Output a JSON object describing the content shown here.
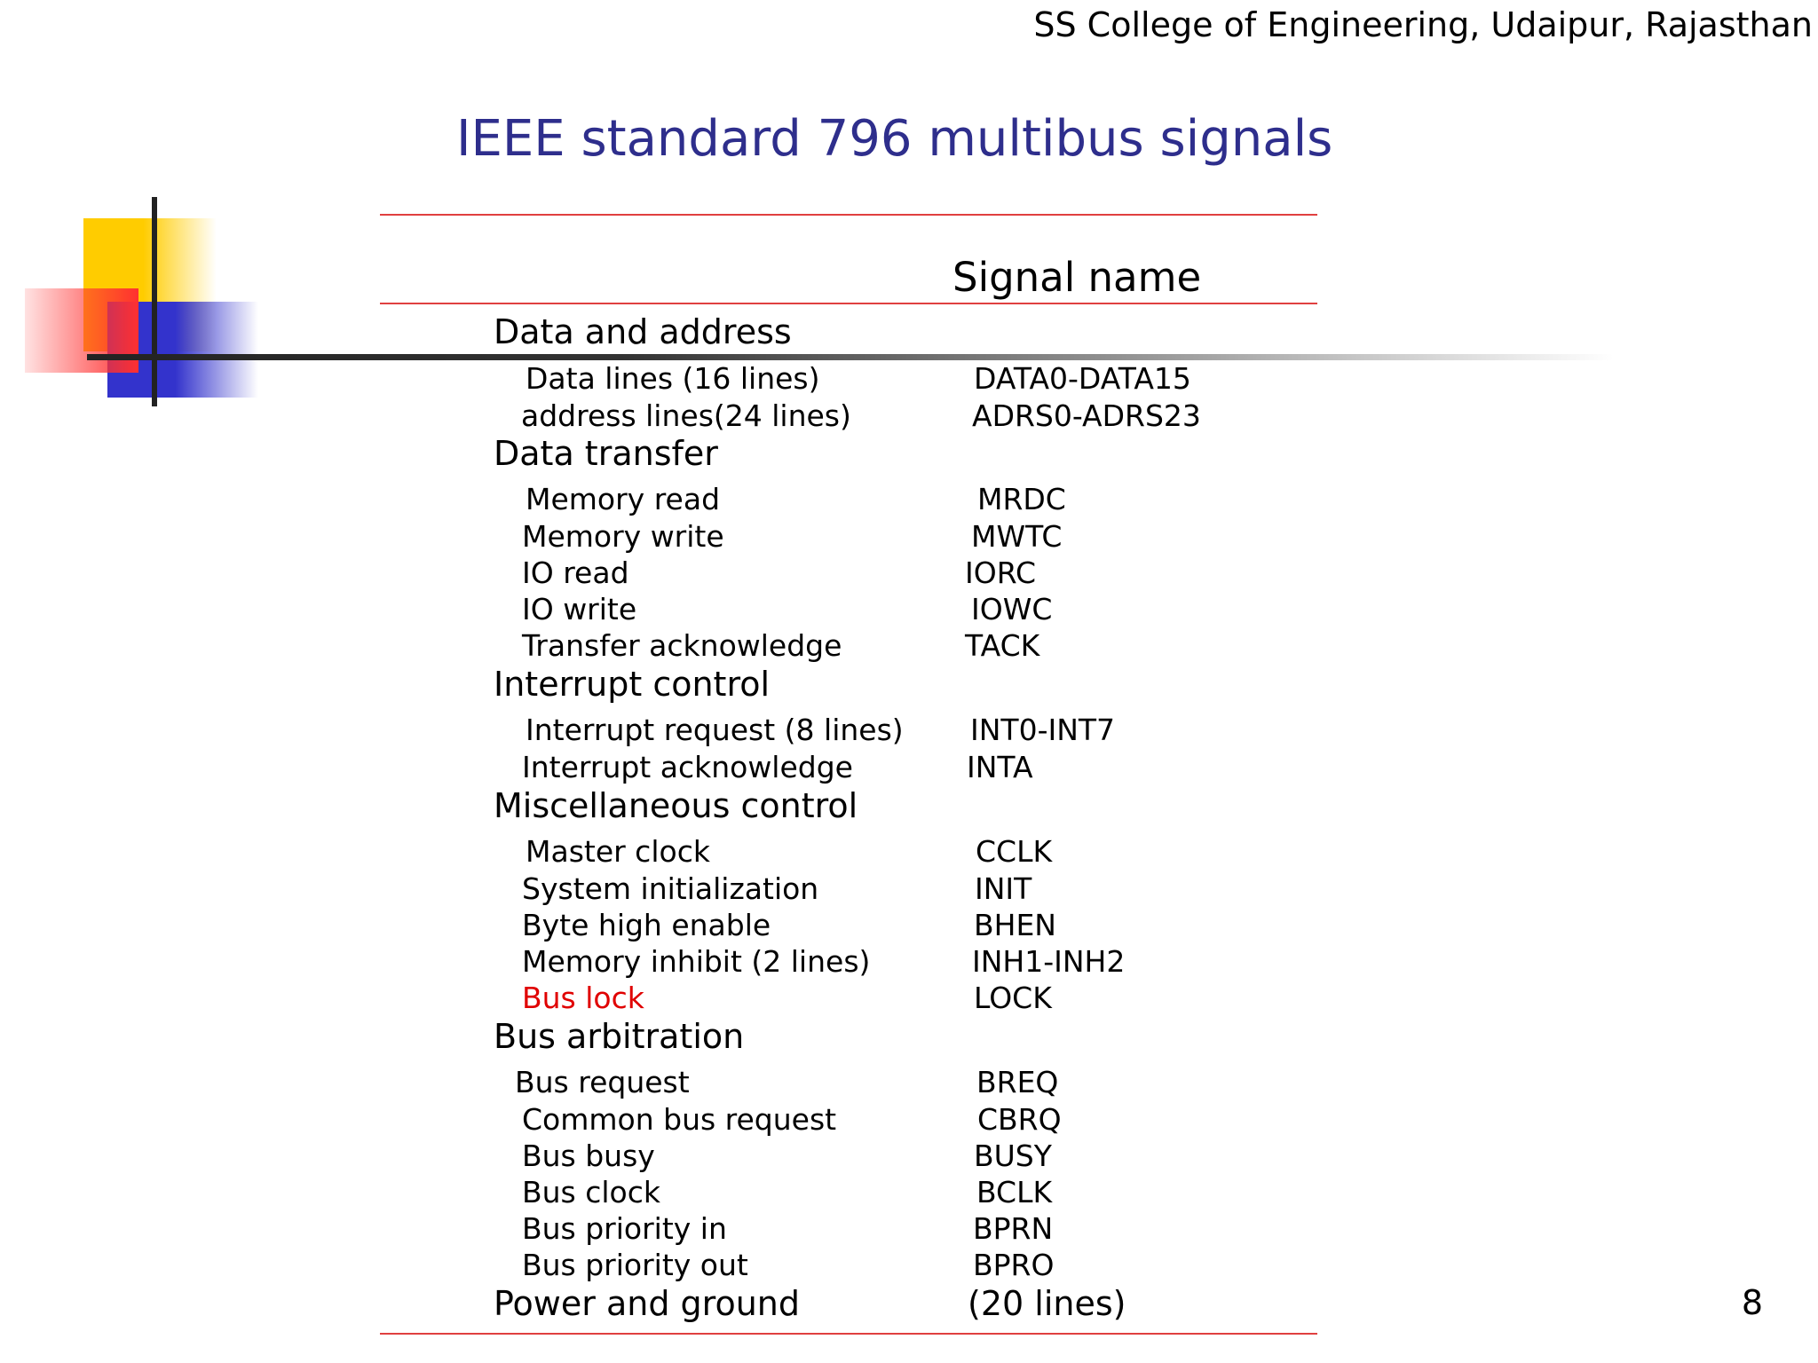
{
  "header": {
    "institution": "SS College of Engineering, Udaipur, Rajasthan"
  },
  "slide": {
    "title": "IEEE standard 796 multibus signals",
    "column_header": "Signal name",
    "page_number": "8"
  },
  "accent_colors": {
    "title": "#2e2e8c",
    "rule": "#e04040",
    "highlight": "#e00000"
  },
  "groups": [
    {
      "category": "Data and address",
      "items": [
        {
          "function": "Data lines (16 lines)",
          "signal": "DATA0-DATA15"
        },
        {
          "function": "address lines(24 lines)",
          "signal": "ADRS0-ADRS23"
        }
      ]
    },
    {
      "category": "Data transfer",
      "items": [
        {
          "function": "Memory read",
          "signal": "MRDC"
        },
        {
          "function": "Memory write",
          "signal": "MWTC"
        },
        {
          "function": "IO read",
          "signal": "IORC"
        },
        {
          "function": "IO write",
          "signal": "IOWC"
        },
        {
          "function": "Transfer acknowledge",
          "signal": "TACK"
        }
      ]
    },
    {
      "category": "Interrupt control",
      "items": [
        {
          "function": "Interrupt request (8 lines)",
          "signal": "INT0-INT7"
        },
        {
          "function": "Interrupt acknowledge",
          "signal": "INTA"
        }
      ]
    },
    {
      "category": "Miscellaneous control",
      "items": [
        {
          "function": "Master clock",
          "signal": "CCLK"
        },
        {
          "function": "System initialization",
          "signal": "INIT"
        },
        {
          "function": "Byte high enable",
          "signal": "BHEN"
        },
        {
          "function": "Memory inhibit (2 lines)",
          "signal": "INH1-INH2"
        },
        {
          "function": "Bus lock",
          "signal": "LOCK",
          "highlight": true
        }
      ]
    },
    {
      "category": "Bus arbitration",
      "items": [
        {
          "function": "Bus request",
          "signal": "BREQ"
        },
        {
          "function": "Common bus request",
          "signal": "CBRQ"
        },
        {
          "function": "Bus busy",
          "signal": "BUSY"
        },
        {
          "function": "Bus clock",
          "signal": "BCLK"
        },
        {
          "function": "Bus priority in",
          "signal": "BPRN"
        },
        {
          "function": "Bus priority out",
          "signal": "BPRO"
        }
      ]
    }
  ],
  "power_row": {
    "category": "Power and ground",
    "signal": "(20 lines)"
  }
}
